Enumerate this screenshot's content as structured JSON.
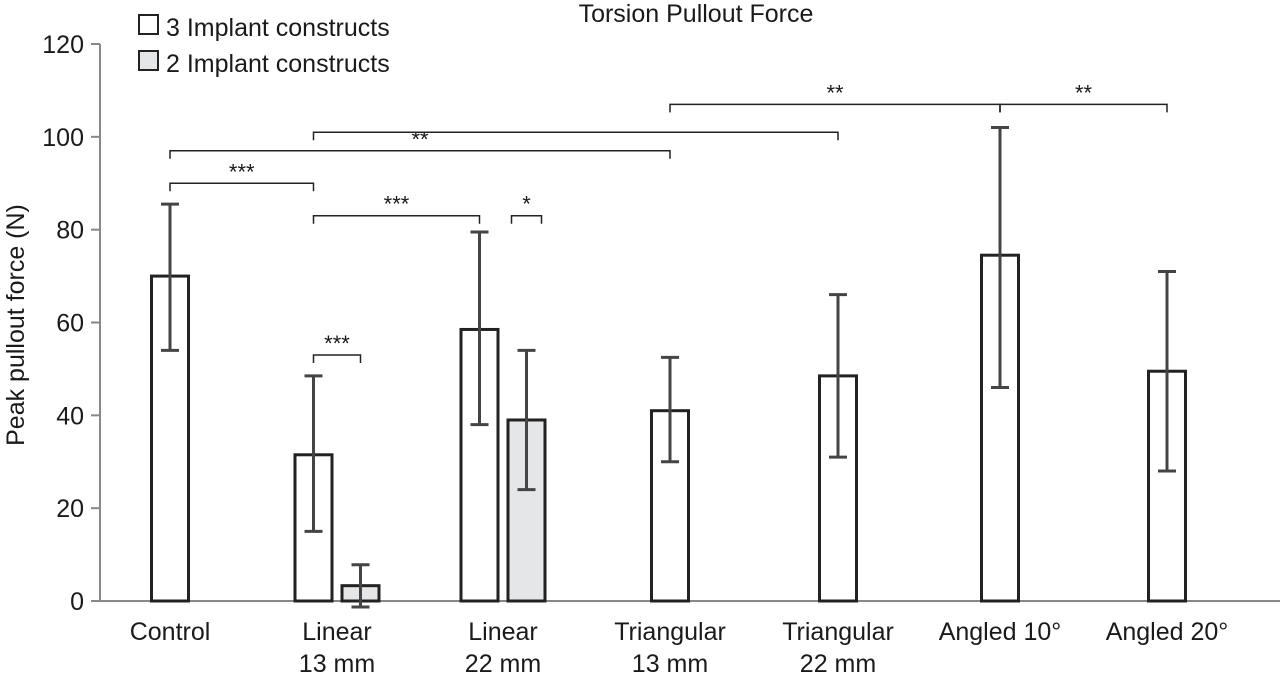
{
  "chart_data": {
    "type": "bar",
    "title": "Torsion Pullout Force",
    "ylabel": "Peak pullout force (N)",
    "xlabel": "",
    "ylim": [
      0,
      120
    ],
    "yticks": [
      0,
      20,
      40,
      60,
      80,
      100,
      120
    ],
    "grid": false,
    "legend_position": "top-left",
    "categories": [
      [
        "Control"
      ],
      [
        "Linear",
        "13 mm"
      ],
      [
        "Linear",
        "22 mm"
      ],
      [
        "Triangular",
        "13 mm"
      ],
      [
        "Triangular",
        "22 mm"
      ],
      [
        "Angled 10°"
      ],
      [
        "Angled 20°"
      ]
    ],
    "series": [
      {
        "name": "3 Implant constructs",
        "color": "#ffffff",
        "values": [
          70,
          31.5,
          58.5,
          41,
          48.5,
          74.5,
          49.5
        ],
        "err_low": [
          54,
          15,
          38,
          30,
          31,
          46,
          28
        ],
        "err_high": [
          85.5,
          48.5,
          79.5,
          52.5,
          66,
          102,
          71
        ]
      },
      {
        "name": "2 Implant constructs",
        "color": "#e5e6e8",
        "values": [
          null,
          3.3,
          39,
          null,
          null,
          null,
          null
        ],
        "err_low": [
          null,
          -1.3,
          24,
          null,
          null,
          null,
          null
        ],
        "err_high": [
          null,
          7.8,
          54,
          null,
          null,
          null,
          null
        ]
      }
    ],
    "significance_brackets": [
      {
        "from": [
          0,
          0
        ],
        "to": [
          1,
          0
        ],
        "y": 90,
        "label": "***"
      },
      {
        "from": [
          0,
          0
        ],
        "to": [
          3,
          0
        ],
        "y": 97,
        "label": "**"
      },
      {
        "from": [
          1,
          0
        ],
        "to": [
          4,
          0
        ],
        "y": 101,
        "label": ""
      },
      {
        "from": [
          3,
          0
        ],
        "to": [
          5,
          0
        ],
        "y": 107,
        "label": "**"
      },
      {
        "from": [
          5,
          0
        ],
        "to": [
          6,
          0
        ],
        "y": 107,
        "label": "**"
      },
      {
        "from": [
          1,
          0
        ],
        "to": [
          2,
          0
        ],
        "y": 83,
        "label": "***"
      },
      {
        "from": [
          2,
          1
        ],
        "to": [
          2,
          1
        ],
        "y": 83,
        "label": "*"
      },
      {
        "from": [
          1,
          0
        ],
        "to": [
          1,
          1
        ],
        "y": 53,
        "label": "***"
      }
    ]
  }
}
